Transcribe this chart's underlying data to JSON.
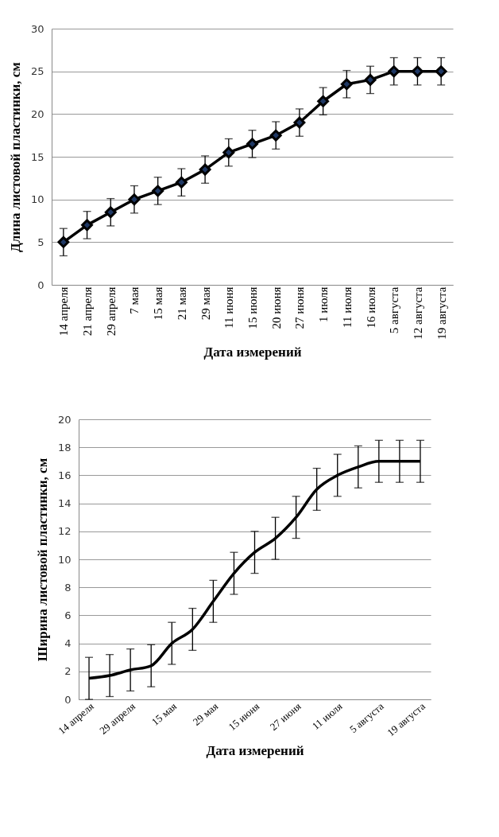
{
  "chart_data": [
    {
      "type": "line",
      "xlabel": "Дата измерений",
      "ylabel": "Длина листовой пластинки, см",
      "categories": [
        "14 апреля",
        "21 апреля",
        "29 апреля",
        "7 мая",
        "15 мая",
        "21 мая",
        "29 мая",
        "11 июня",
        "15 июня",
        "20 июня",
        "27 июня",
        "1 июля",
        "11 июля",
        "16 июля",
        "5 августа",
        "12 августа",
        "19 августа"
      ],
      "series": [
        {
          "color": "#000000",
          "values": [
            5,
            7,
            8.5,
            10,
            11,
            12,
            13.5,
            15.5,
            16.5,
            17.5,
            19,
            21.5,
            23.5,
            24,
            25,
            25,
            25
          ],
          "errors": [
            1.6,
            1.6,
            1.6,
            1.6,
            1.6,
            1.6,
            1.6,
            1.6,
            1.6,
            1.6,
            1.6,
            1.6,
            1.6,
            1.6,
            1.6,
            1.6,
            1.6
          ]
        }
      ],
      "ylim": [
        0,
        30
      ],
      "yticks": [
        0,
        5,
        10,
        15,
        20,
        25,
        30
      ],
      "grid": "y",
      "legend": false,
      "marker": "diamond",
      "line_style": "solid"
    },
    {
      "type": "line",
      "xlabel": "Дата измерений",
      "ylabel": "Ширина листовой пластинки, см",
      "categories": [
        "14 апреля",
        null,
        "29 апреля",
        null,
        "15 мая",
        null,
        "29 мая",
        null,
        "15 июня",
        null,
        "27 июня",
        null,
        "11 июля",
        null,
        "5 августа",
        null,
        "19 августа"
      ],
      "series": [
        {
          "color": "#000000",
          "values": [
            1.5,
            1.7,
            2.1,
            2.4,
            4,
            5,
            7,
            9,
            10.5,
            11.5,
            13,
            15,
            16,
            16.6,
            17,
            17,
            17
          ],
          "errors": [
            1.5,
            1.5,
            1.5,
            1.5,
            1.5,
            1.5,
            1.5,
            1.5,
            1.5,
            1.5,
            1.5,
            1.5,
            1.5,
            1.5,
            1.5,
            1.5,
            1.5
          ]
        }
      ],
      "ylim": [
        0,
        20
      ],
      "yticks": [
        0,
        2,
        4,
        6,
        8,
        10,
        12,
        14,
        16,
        18,
        20
      ],
      "grid": "y",
      "legend": false,
      "marker": "none",
      "line_style": "solid"
    }
  ]
}
